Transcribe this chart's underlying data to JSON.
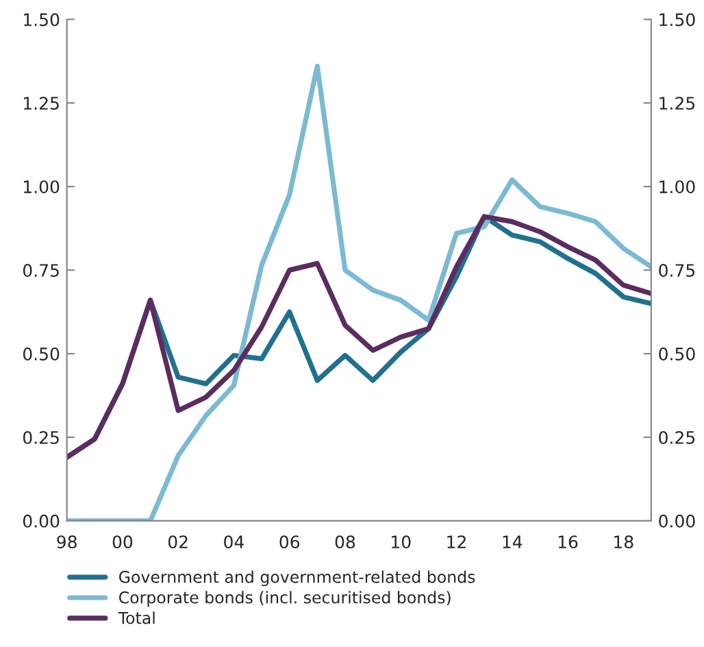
{
  "chart_data": {
    "type": "line",
    "x": [
      1998,
      1999,
      2000,
      2001,
      2002,
      2003,
      2004,
      2005,
      2006,
      2007,
      2008,
      2009,
      2010,
      2011,
      2012,
      2013,
      2014,
      2015,
      2016,
      2017,
      2018,
      2019
    ],
    "series": [
      {
        "name": "Government and government-related bonds",
        "color": "#21708f",
        "values": [
          0.19,
          0.245,
          0.41,
          0.66,
          0.43,
          0.41,
          0.495,
          0.485,
          0.625,
          0.42,
          0.495,
          0.42,
          0.505,
          0.575,
          0.73,
          0.91,
          0.855,
          0.835,
          0.785,
          0.74,
          0.67,
          0.65
        ]
      },
      {
        "name": "Corporate bonds (incl. securitised bonds)",
        "color": "#7bbad3",
        "values": [
          0,
          0,
          0,
          0,
          0.195,
          0.315,
          0.405,
          0.765,
          0.975,
          1.36,
          0.75,
          0.69,
          0.66,
          0.6,
          0.86,
          0.88,
          1.02,
          0.94,
          0.92,
          0.895,
          0.815,
          0.76
        ]
      },
      {
        "name": "Total",
        "color": "#5b2c5f",
        "values": [
          0.19,
          0.245,
          0.41,
          0.66,
          0.33,
          0.37,
          0.45,
          0.58,
          0.75,
          0.77,
          0.585,
          0.51,
          0.55,
          0.575,
          0.76,
          0.91,
          0.895,
          0.865,
          0.82,
          0.78,
          0.705,
          0.68
        ]
      }
    ],
    "xlim": [
      1998,
      2019
    ],
    "xticks": [
      {
        "value": 1998,
        "label": "98"
      },
      {
        "value": 2000,
        "label": "00"
      },
      {
        "value": 2002,
        "label": "02"
      },
      {
        "value": 2004,
        "label": "04"
      },
      {
        "value": 2006,
        "label": "06"
      },
      {
        "value": 2008,
        "label": "08"
      },
      {
        "value": 2010,
        "label": "10"
      },
      {
        "value": 2012,
        "label": "12"
      },
      {
        "value": 2014,
        "label": "14"
      },
      {
        "value": 2016,
        "label": "16"
      },
      {
        "value": 2018,
        "label": "18"
      }
    ],
    "ylim": [
      0,
      1.5
    ],
    "yticks": [
      {
        "value": 0,
        "label": "0.00"
      },
      {
        "value": 0.25,
        "label": "0.25"
      },
      {
        "value": 0.5,
        "label": "0.50"
      },
      {
        "value": 0.75,
        "label": "0.75"
      },
      {
        "value": 1.0,
        "label": "1.00"
      },
      {
        "value": 1.25,
        "label": "1.25"
      },
      {
        "value": 1.5,
        "label": "1.50"
      }
    ],
    "y2lim": [
      0,
      1.5
    ],
    "y2ticks": [
      {
        "value": 0,
        "label": "0.00"
      },
      {
        "value": 0.25,
        "label": "0.25"
      },
      {
        "value": 0.5,
        "label": "0.50"
      },
      {
        "value": 0.75,
        "label": "0.75"
      },
      {
        "value": 1.0,
        "label": "1.00"
      },
      {
        "value": 1.25,
        "label": "1.25"
      },
      {
        "value": 1.5,
        "label": "1.50"
      }
    ],
    "grid": false,
    "legend": "bottom",
    "marker": "none",
    "line_style": "solid"
  }
}
